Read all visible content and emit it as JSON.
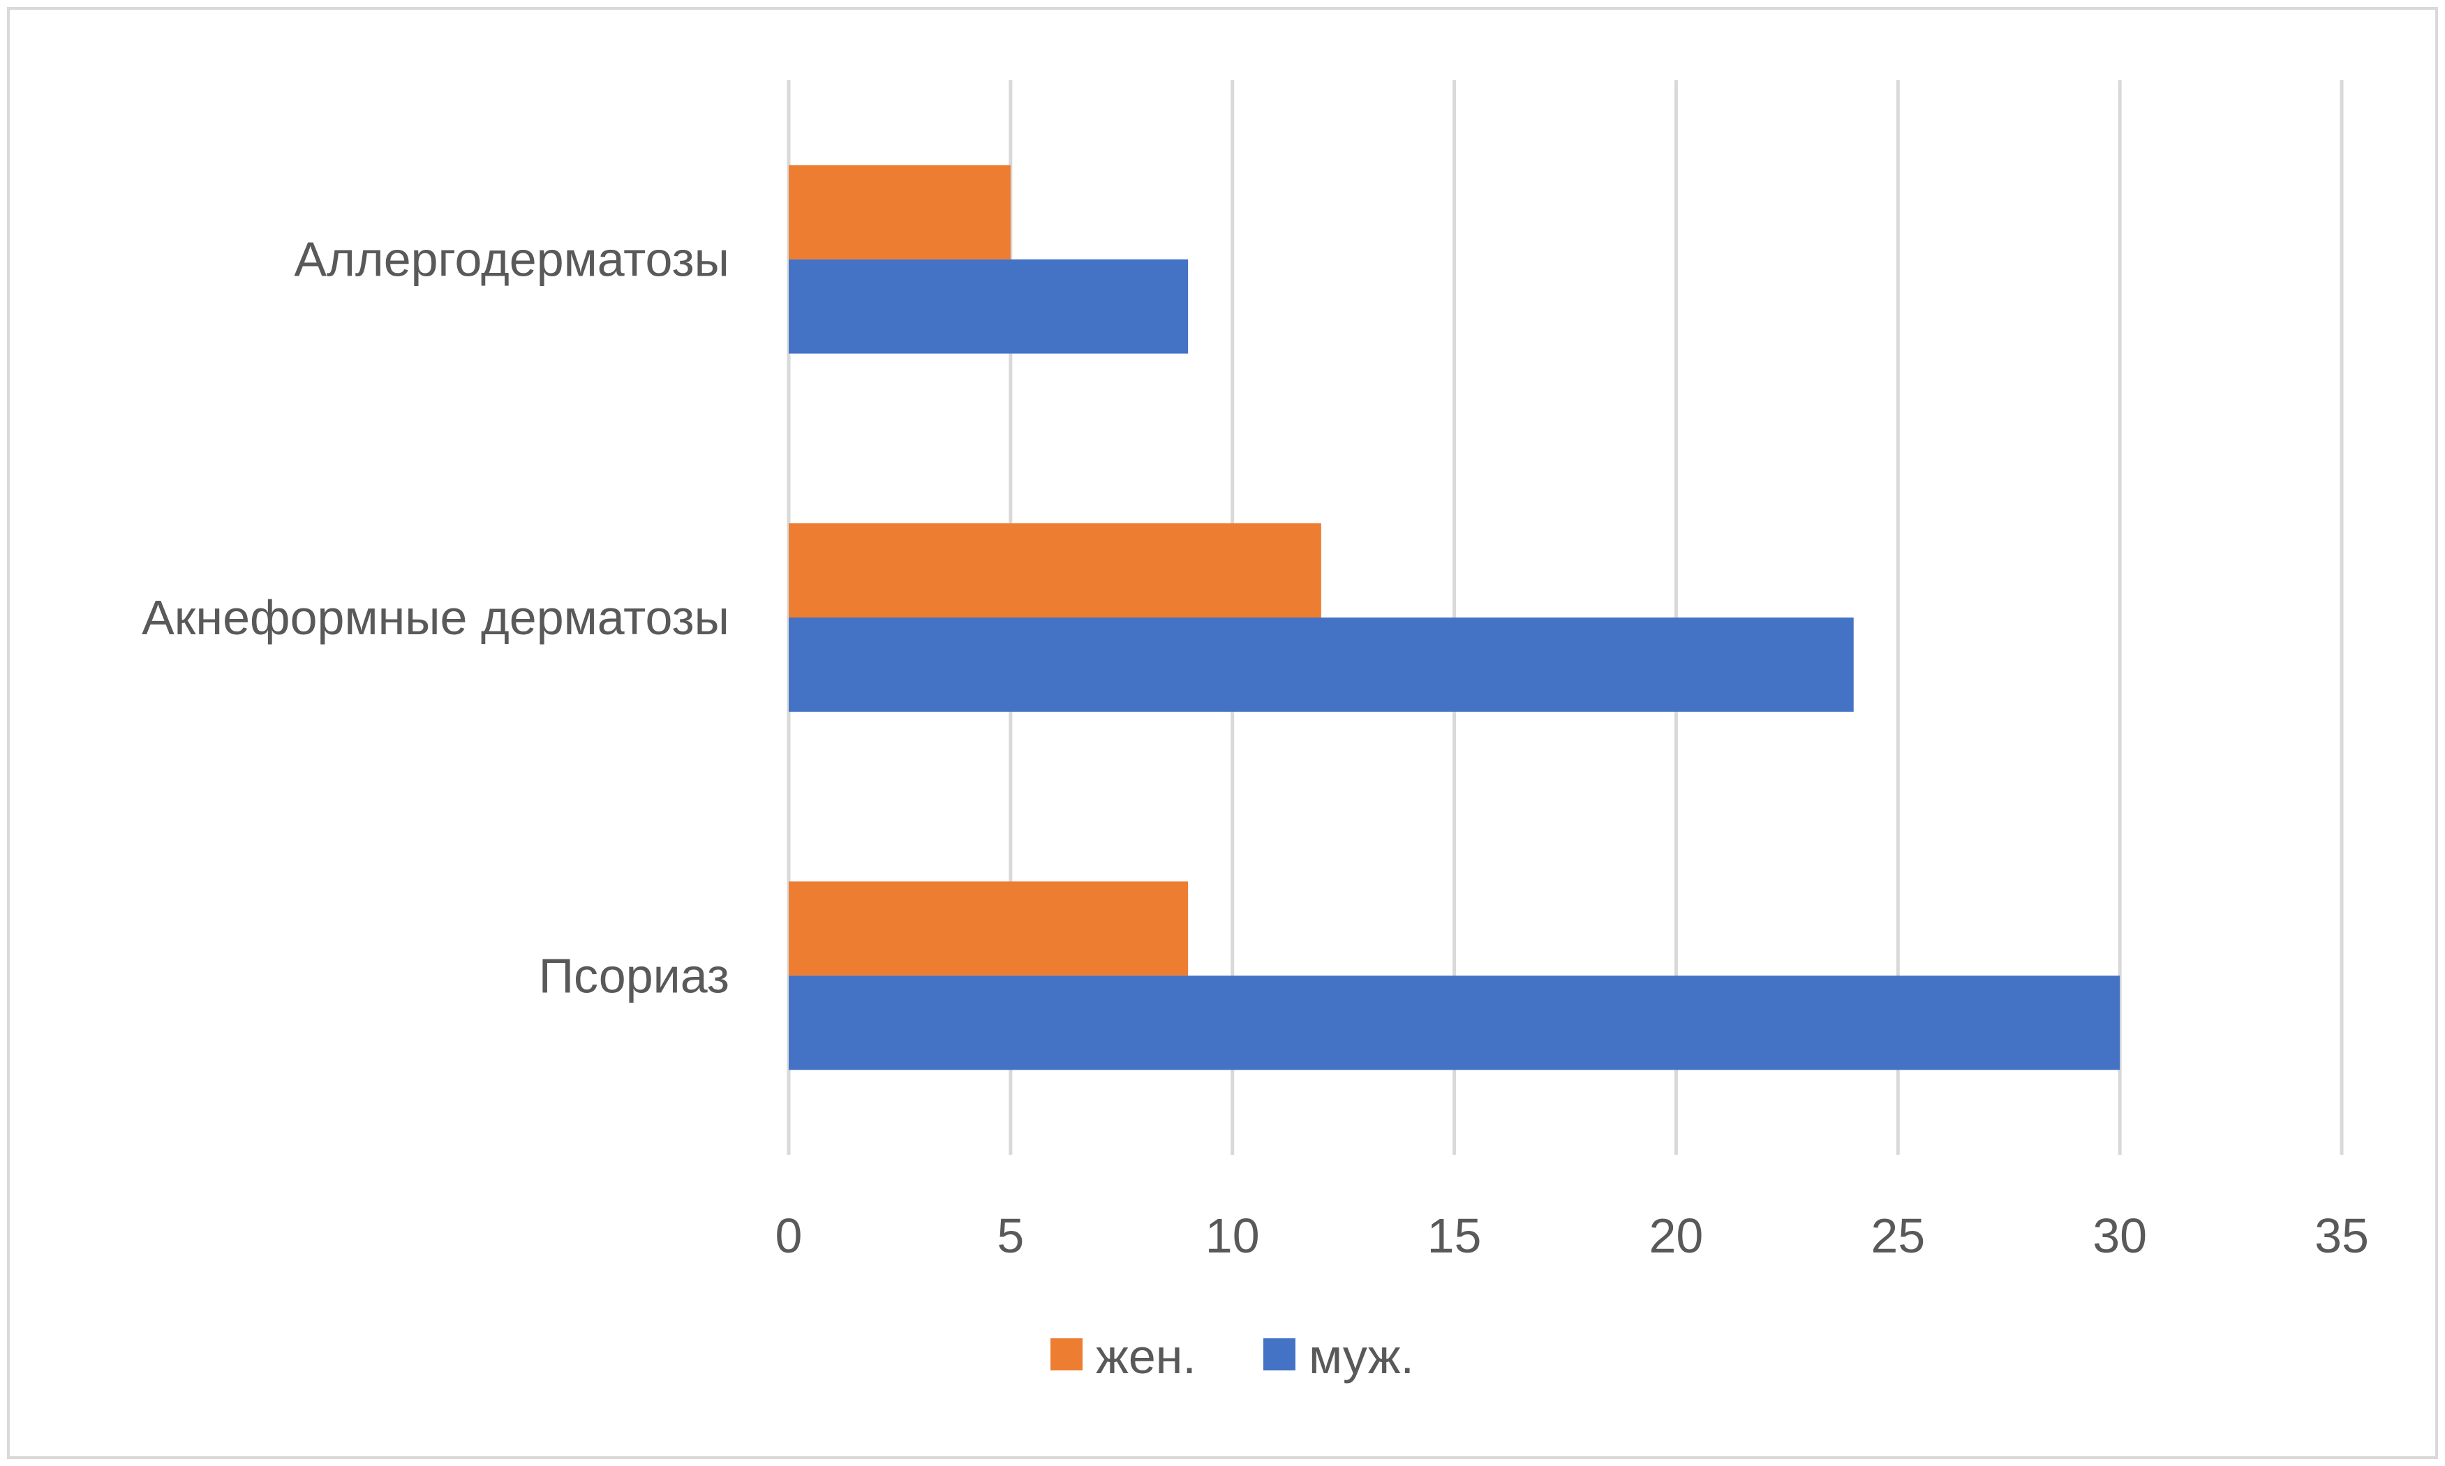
{
  "chart_data": {
    "type": "bar",
    "orientation": "horizontal",
    "categories": [
      "Аллергодерматозы",
      "Акнеформные дерматозы",
      "Псориаз"
    ],
    "series": [
      {
        "name": "жен.",
        "color": "#ed7d31",
        "values": [
          5,
          12,
          9
        ]
      },
      {
        "name": "муж.",
        "color": "#4472c4",
        "values": [
          9,
          24,
          30
        ]
      }
    ],
    "xlim": [
      0,
      35
    ],
    "xticks": [
      0,
      5,
      10,
      15,
      20,
      25,
      30,
      35
    ],
    "grid": true,
    "legend": "bottom",
    "title": "",
    "xlabel": "",
    "ylabel": ""
  }
}
